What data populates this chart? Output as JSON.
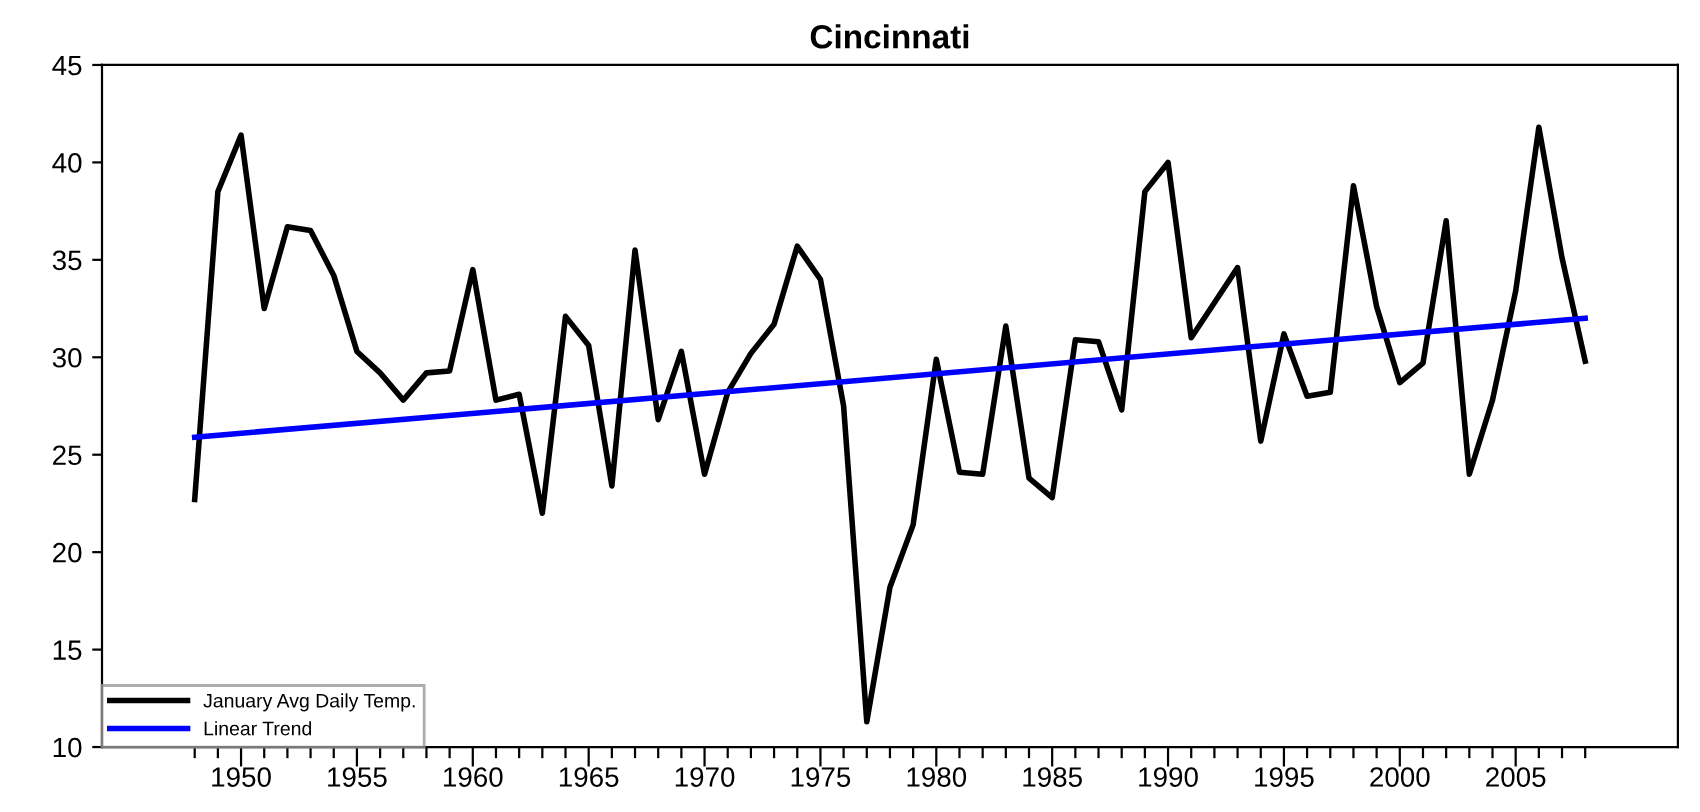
{
  "chart_data": {
    "type": "line",
    "title": "Cincinnati",
    "x": [
      1948,
      1949,
      1950,
      1951,
      1952,
      1953,
      1954,
      1955,
      1956,
      1957,
      1958,
      1959,
      1960,
      1961,
      1962,
      1963,
      1964,
      1965,
      1966,
      1967,
      1968,
      1969,
      1970,
      1971,
      1972,
      1973,
      1974,
      1975,
      1976,
      1977,
      1978,
      1979,
      1980,
      1981,
      1982,
      1983,
      1984,
      1985,
      1986,
      1987,
      1988,
      1989,
      1990,
      1991,
      1992,
      1993,
      1994,
      1995,
      1996,
      1997,
      1998,
      1999,
      2000,
      2001,
      2002,
      2003,
      2004,
      2005,
      2006,
      2007,
      2008
    ],
    "series": [
      {
        "name": "January Avg Daily Temp.",
        "color": "#000000",
        "values": [
          22.7,
          38.5,
          41.4,
          32.5,
          36.7,
          36.5,
          34.2,
          30.3,
          29.2,
          27.8,
          29.2,
          29.3,
          34.5,
          27.8,
          28.1,
          22.0,
          32.1,
          30.6,
          23.4,
          35.5,
          26.8,
          30.3,
          24.0,
          28.2,
          30.2,
          31.7,
          35.7,
          34.0,
          27.5,
          11.3,
          18.2,
          21.4,
          29.9,
          24.1,
          24.0,
          31.6,
          23.8,
          22.8,
          30.9,
          30.8,
          27.3,
          38.5,
          40.0,
          31.0,
          32.8,
          34.6,
          25.7,
          31.2,
          28.0,
          28.2,
          38.8,
          32.6,
          28.7,
          29.7,
          37.0,
          24.0,
          27.8,
          33.4,
          41.8,
          35.1,
          29.8
        ]
      },
      {
        "name": "Linear Trend",
        "color": "#0000ff",
        "x": [
          1948,
          2008
        ],
        "values": [
          25.9,
          32.0
        ]
      }
    ],
    "xlim": [
      1944,
      2012
    ],
    "xticks": [
      {
        "value": 1948,
        "label": null
      },
      {
        "value": 1949,
        "label": null
      },
      1950,
      {
        "value": 1951,
        "label": null
      },
      {
        "value": 1952,
        "label": null
      },
      {
        "value": 1953,
        "label": null
      },
      {
        "value": 1954,
        "label": null
      },
      1955,
      {
        "value": 1956,
        "label": null
      },
      {
        "value": 1957,
        "label": null
      },
      {
        "value": 1958,
        "label": null
      },
      {
        "value": 1959,
        "label": null
      },
      1960,
      {
        "value": 1961,
        "label": null
      },
      {
        "value": 1962,
        "label": null
      },
      {
        "value": 1963,
        "label": null
      },
      {
        "value": 1964,
        "label": null
      },
      1965,
      {
        "value": 1966,
        "label": null
      },
      {
        "value": 1967,
        "label": null
      },
      {
        "value": 1968,
        "label": null
      },
      {
        "value": 1969,
        "label": null
      },
      1970,
      {
        "value": 1971,
        "label": null
      },
      {
        "value": 1972,
        "label": null
      },
      {
        "value": 1973,
        "label": null
      },
      {
        "value": 1974,
        "label": null
      },
      1975,
      {
        "value": 1976,
        "label": null
      },
      {
        "value": 1977,
        "label": null
      },
      {
        "value": 1978,
        "label": null
      },
      {
        "value": 1979,
        "label": null
      },
      1980,
      {
        "value": 1981,
        "label": null
      },
      {
        "value": 1982,
        "label": null
      },
      {
        "value": 1983,
        "label": null
      },
      {
        "value": 1984,
        "label": null
      },
      1985,
      {
        "value": 1986,
        "label": null
      },
      {
        "value": 1987,
        "label": null
      },
      {
        "value": 1988,
        "label": null
      },
      {
        "value": 1989,
        "label": null
      },
      1990,
      {
        "value": 1991,
        "label": null
      },
      {
        "value": 1992,
        "label": null
      },
      {
        "value": 1993,
        "label": null
      },
      {
        "value": 1994,
        "label": null
      },
      1995,
      {
        "value": 1996,
        "label": null
      },
      {
        "value": 1997,
        "label": null
      },
      {
        "value": 1998,
        "label": null
      },
      {
        "value": 1999,
        "label": null
      },
      2000,
      {
        "value": 2001,
        "label": null
      },
      {
        "value": 2002,
        "label": null
      },
      {
        "value": 2003,
        "label": null
      },
      {
        "value": 2004,
        "label": null
      },
      2005,
      {
        "value": 2006,
        "label": null
      },
      {
        "value": 2007,
        "label": null
      },
      {
        "value": 2008,
        "label": null
      }
    ],
    "ylim": [
      10,
      45
    ],
    "yticks": [
      10,
      15,
      20,
      25,
      30,
      35,
      40,
      45
    ],
    "legend": "bottom left",
    "line_style": "solid"
  }
}
